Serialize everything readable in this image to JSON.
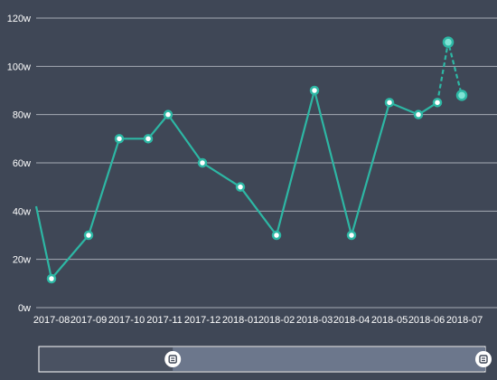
{
  "colors": {
    "background": "#3f4756",
    "grid": "#c8ccd4",
    "axis_text": "#ffffff",
    "line": "#2db7a4",
    "marker_fill": "#ffffff",
    "highlight_fill": "#7fe3d4",
    "slider_track": "#4a5262",
    "slider_selected": "#6c778c",
    "slider_border": "#ffffff",
    "handle_fill": "#ffffff",
    "handle_grip": "#3f4756"
  },
  "chart_data": {
    "type": "line",
    "x": [
      "2017-07",
      "2017-08",
      "2017-09",
      "2017-10",
      "2017-10-15",
      "2017-11",
      "2017-12",
      "2018-01",
      "2018-02",
      "2018-03",
      "2018-04",
      "2018-05",
      "2018-05-15",
      "2018-06",
      "2018-06-15",
      "2018-07"
    ],
    "y": [
      42,
      12,
      30,
      70,
      70,
      80,
      60,
      50,
      30,
      90,
      30,
      85,
      80,
      85,
      110,
      88
    ],
    "y_unit": "w",
    "ylim": [
      0,
      120
    ],
    "yticks": [
      "0w",
      "20w",
      "40w",
      "60w",
      "80w",
      "100w",
      "120w"
    ],
    "xtick_labels": [
      "2017-08",
      "2017-09",
      "2017-10",
      "2017-11",
      "2017-12",
      "2018-01",
      "2018-02",
      "2018-03",
      "2018-04",
      "2018-05",
      "2018-06",
      "2018-07"
    ],
    "dashed_from_index": 13,
    "highlighted_points": [
      14,
      15
    ],
    "grid": true,
    "legend": "none",
    "title": "",
    "xlabel": "",
    "ylabel": ""
  },
  "data_zoom": {
    "start_fraction": 0.3,
    "end_fraction": 1.0,
    "handle_icon": "grip-icon"
  }
}
